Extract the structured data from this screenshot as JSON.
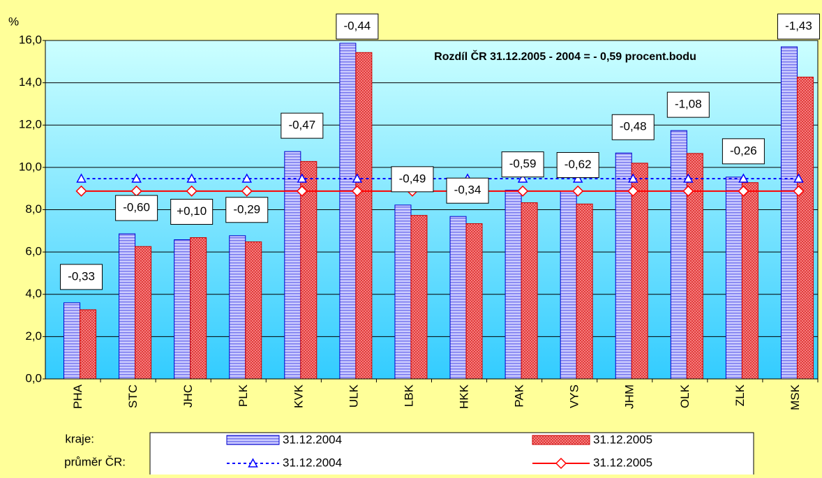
{
  "chart_data": {
    "type": "bar",
    "y_label": "%",
    "annotation": "Rozdíl ČR 31.12.2005 - 2004 = - 0,59 procent.bodu",
    "categories": [
      "PHA",
      "STC",
      "JHC",
      "PLK",
      "KVK",
      "ULK",
      "LBK",
      "HKK",
      "PAK",
      "VYS",
      "JHM",
      "OLK",
      "ZLK",
      "MSK"
    ],
    "differences": [
      "-0,33",
      "-0,60",
      "+0,10",
      "-0,29",
      "-0,47",
      "-0,44",
      "-0,49",
      "-0,34",
      "-0,59",
      "-0,62",
      "-0,48",
      "-1,08",
      "-0,26",
      "-1,43"
    ],
    "legend_groups": [
      "kraje:",
      "průměr ČR:"
    ],
    "series": [
      {
        "name": "31.12.2004",
        "color": "#9999ff",
        "values": [
          3.6,
          6.86,
          6.58,
          6.77,
          10.75,
          15.87,
          8.22,
          7.68,
          8.92,
          8.89,
          10.68,
          11.74,
          9.54,
          15.7
        ]
      },
      {
        "name": "31.12.2005",
        "color": "#ff6666",
        "values": [
          3.27,
          6.26,
          6.68,
          6.48,
          10.28,
          15.43,
          7.73,
          7.34,
          8.33,
          8.27,
          10.2,
          10.66,
          9.28,
          14.27
        ]
      },
      {
        "name": "31.12.2004",
        "color": "#0000ff",
        "type": "line",
        "values": [
          9.47,
          9.47,
          9.47,
          9.47,
          9.47,
          9.47,
          9.47,
          9.47,
          9.47,
          9.47,
          9.47,
          9.47,
          9.47,
          9.47
        ]
      },
      {
        "name": "31.12.2005",
        "color": "#ff0000",
        "type": "line",
        "values": [
          8.88,
          8.88,
          8.88,
          8.88,
          8.88,
          8.88,
          8.88,
          8.88,
          8.88,
          8.88,
          8.88,
          8.88,
          8.88,
          8.88
        ]
      }
    ],
    "ylim": [
      0,
      16
    ],
    "yticks": [
      {
        "value": 0,
        "label": "0,0"
      },
      {
        "value": 2,
        "label": "2,0"
      },
      {
        "value": 4,
        "label": "4,0"
      },
      {
        "value": 6,
        "label": "6,0"
      },
      {
        "value": 8,
        "label": "8,0"
      },
      {
        "value": 10,
        "label": "10,0"
      },
      {
        "value": 12,
        "label": "12,0"
      },
      {
        "value": 14,
        "label": "14,0"
      },
      {
        "value": 16,
        "label": "16,0"
      }
    ],
    "grid": true
  }
}
